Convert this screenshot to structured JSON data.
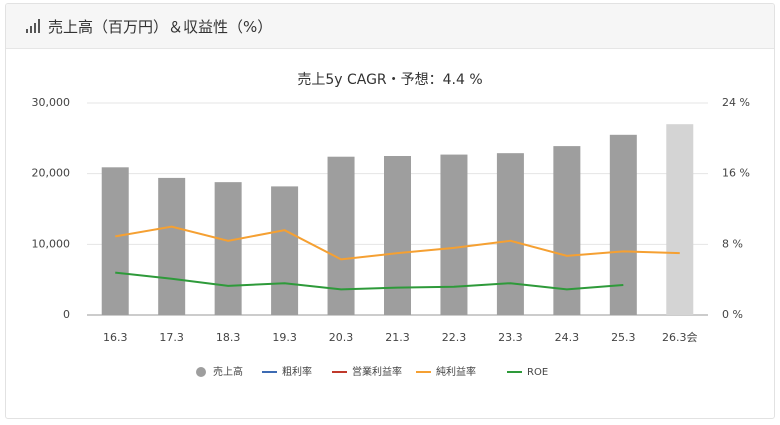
{
  "header": {
    "title": "売上高（百万円）＆収益性（%）"
  },
  "chart_data": {
    "type": "bar-line",
    "title": "売上5y CAGR・予想：4.4 %",
    "categories": [
      "16.3",
      "17.3",
      "18.3",
      "19.3",
      "20.3",
      "21.3",
      "22.3",
      "23.3",
      "24.3",
      "25.3",
      "26.3会"
    ],
    "series": [
      {
        "name": "売上高",
        "type": "bar",
        "colors": [
          "#9e9e9e",
          "#9e9e9e",
          "#9e9e9e",
          "#9e9e9e",
          "#9e9e9e",
          "#9e9e9e",
          "#9e9e9e",
          "#9e9e9e",
          "#9e9e9e",
          "#9e9e9e",
          "#d4d4d4"
        ],
        "color": "#9e9e9e",
        "values": [
          20900,
          19400,
          18800,
          18200,
          22400,
          22500,
          22700,
          22900,
          23900,
          25500,
          27000
        ]
      },
      {
        "name": "粗利率",
        "type": "line",
        "axis": "y2",
        "color": "#3d6bb3",
        "values": [
          null,
          null,
          null,
          null,
          null,
          null,
          null,
          null,
          null,
          null,
          null
        ]
      },
      {
        "name": "営業利益率",
        "type": "line",
        "axis": "y2",
        "color": "#c0392b",
        "values": [
          null,
          null,
          null,
          null,
          null,
          null,
          null,
          null,
          null,
          null,
          null
        ]
      },
      {
        "name": "純利益率",
        "type": "line",
        "axis": "y2",
        "color": "#f5a032",
        "values": [
          8.9,
          10.0,
          8.4,
          9.6,
          6.3,
          7.0,
          7.6,
          8.4,
          6.7,
          7.2,
          7.0
        ]
      },
      {
        "name": "ROE",
        "type": "line",
        "axis": "y2",
        "color": "#2e9a3a",
        "values": [
          4.8,
          4.1,
          3.3,
          3.6,
          2.9,
          3.1,
          3.2,
          3.6,
          2.9,
          3.4,
          null
        ]
      }
    ],
    "ylim": [
      0,
      30000
    ],
    "yticks": [
      0,
      {
        "value": 10000,
        "label": "10,000"
      },
      {
        "value": 20000,
        "label": "20,000"
      },
      {
        "value": 30000,
        "label": "30,000"
      }
    ],
    "y2lim": [
      0,
      24
    ],
    "y2ticks": [
      {
        "value": 0,
        "label": "0 %"
      },
      {
        "value": 8,
        "label": "8 %"
      },
      {
        "value": 16,
        "label": "16 %"
      },
      {
        "value": 24,
        "label": "24 %"
      }
    ],
    "grid": true,
    "legend": "bottom"
  }
}
